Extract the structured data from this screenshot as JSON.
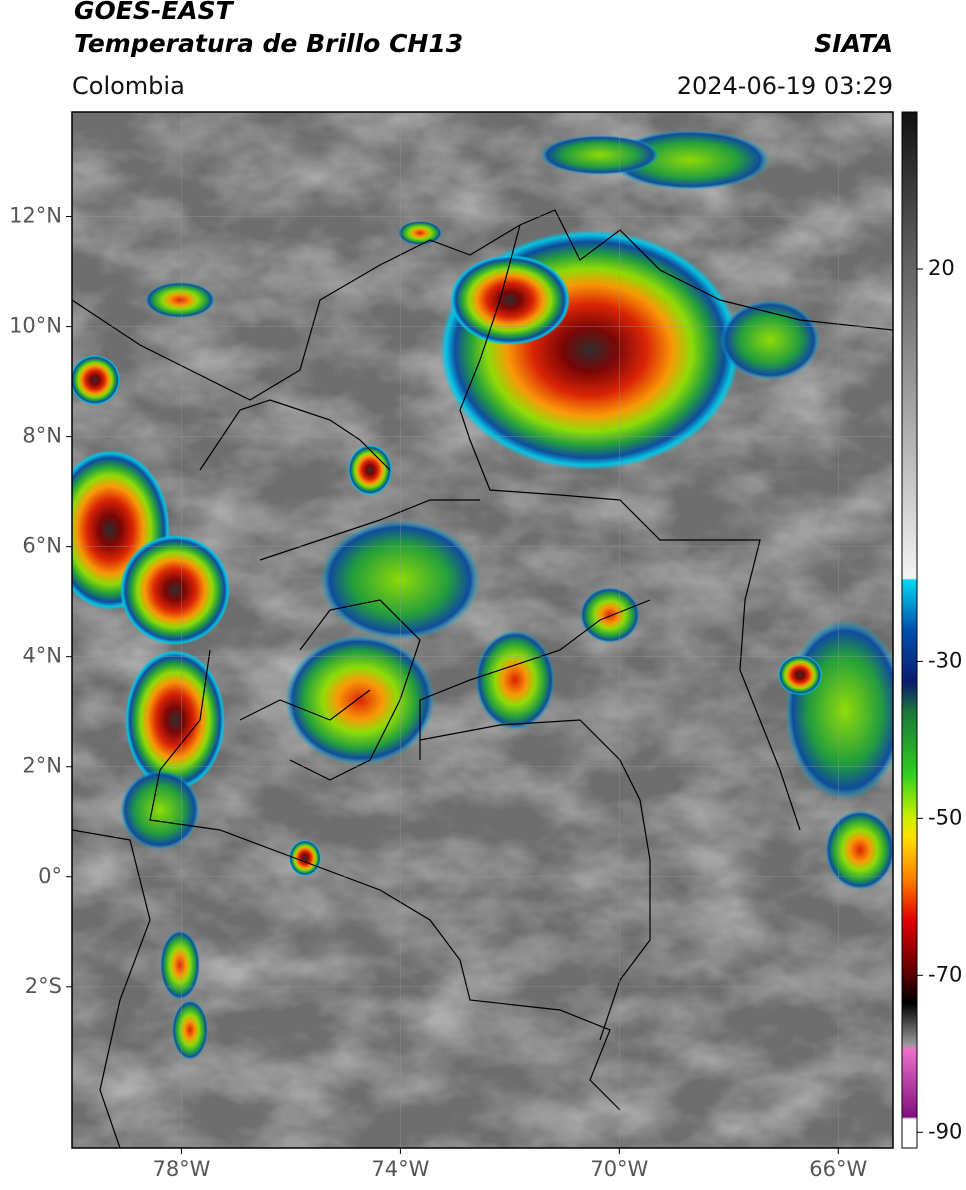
{
  "header": {
    "title": "GOES-EAST",
    "subtitle": "Temperatura de Brillo CH13",
    "source": "SIATA",
    "region": "Colombia",
    "timestamp": "2024-06-19 03:29"
  },
  "map": {
    "lon_range": [
      -80,
      -65
    ],
    "lat_range": [
      -4.93,
      13.9
    ],
    "lat_ticks": [
      {
        "value": 12,
        "label": "12°N"
      },
      {
        "value": 10,
        "label": "10°N"
      },
      {
        "value": 8,
        "label": "8°N"
      },
      {
        "value": 6,
        "label": "6°N"
      },
      {
        "value": 4,
        "label": "4°N"
      },
      {
        "value": 2,
        "label": "2°N"
      },
      {
        "value": 0,
        "label": "0°"
      },
      {
        "value": -2,
        "label": "2°S"
      }
    ],
    "lon_ticks": [
      {
        "value": -78,
        "label": "78°W"
      },
      {
        "value": -74,
        "label": "74°W"
      },
      {
        "value": -70,
        "label": "70°W"
      },
      {
        "value": -66,
        "label": "66°W"
      }
    ]
  },
  "colorbar": {
    "range": [
      -92,
      40
    ],
    "ticks": [
      20,
      -30,
      -50,
      -70,
      -90
    ]
  }
}
